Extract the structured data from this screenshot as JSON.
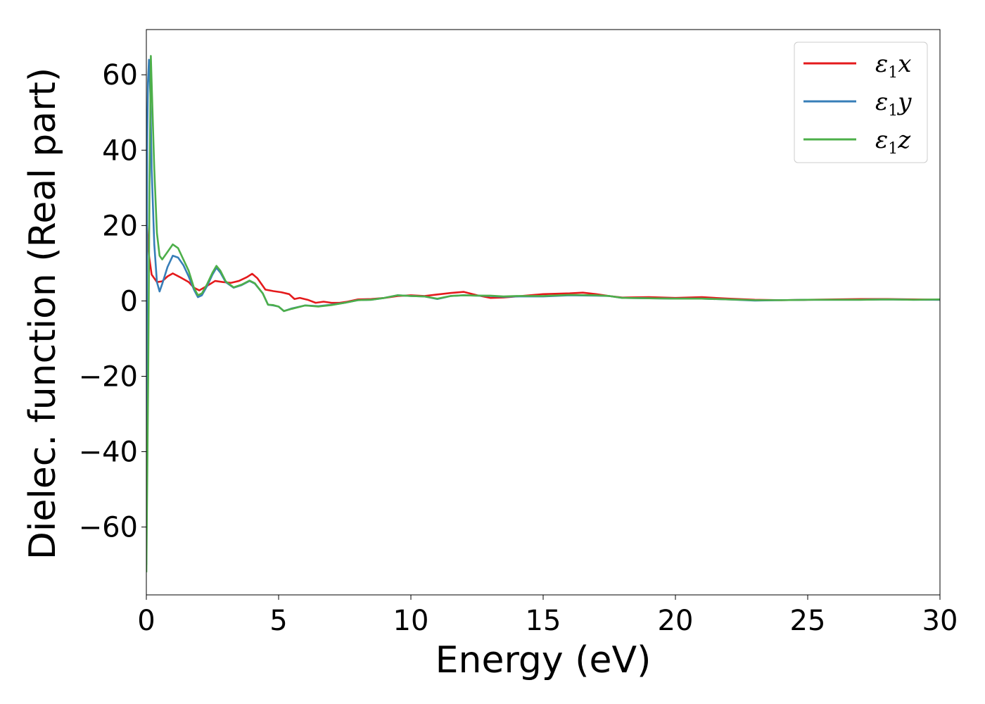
{
  "chart_data": {
    "type": "line",
    "title": "",
    "xlabel": "Energy (eV)",
    "ylabel": "Dielec. function (Real part)",
    "xlim": [
      0,
      30
    ],
    "ylim": [
      -78,
      72
    ],
    "xticks": [
      0,
      5,
      10,
      15,
      20,
      25,
      30
    ],
    "yticks": [
      -60,
      -40,
      -20,
      0,
      20,
      40,
      60
    ],
    "xtick_labels": [
      "0",
      "5",
      "10",
      "15",
      "20",
      "25",
      "30"
    ],
    "ytick_labels": [
      "−60",
      "−40",
      "−20",
      "0",
      "20",
      "40",
      "60"
    ],
    "grid": false,
    "legend_position": "top-right",
    "series": [
      {
        "name": "ε₁x",
        "name_base": "ε",
        "name_sub": "1",
        "name_tail": "x",
        "color": "#e41a1c",
        "points": [
          [
            0.0,
            22
          ],
          [
            0.1,
            12
          ],
          [
            0.2,
            7
          ],
          [
            0.4,
            5
          ],
          [
            0.6,
            5.2
          ],
          [
            0.8,
            6.5
          ],
          [
            1.0,
            7.3
          ],
          [
            1.3,
            6.2
          ],
          [
            1.6,
            5.0
          ],
          [
            1.8,
            3.5
          ],
          [
            2.0,
            2.8
          ],
          [
            2.3,
            4.0
          ],
          [
            2.6,
            5.3
          ],
          [
            2.9,
            5.0
          ],
          [
            3.2,
            4.8
          ],
          [
            3.5,
            5.3
          ],
          [
            3.8,
            6.3
          ],
          [
            4.0,
            7.2
          ],
          [
            4.2,
            6.0
          ],
          [
            4.5,
            3.0
          ],
          [
            4.8,
            2.6
          ],
          [
            5.1,
            2.3
          ],
          [
            5.4,
            1.8
          ],
          [
            5.6,
            0.5
          ],
          [
            5.8,
            0.8
          ],
          [
            6.1,
            0.3
          ],
          [
            6.4,
            -0.5
          ],
          [
            6.7,
            -0.2
          ],
          [
            7.0,
            -0.5
          ],
          [
            7.3,
            -0.5
          ],
          [
            7.6,
            -0.2
          ],
          [
            8.0,
            0.4
          ],
          [
            8.5,
            0.5
          ],
          [
            9.0,
            0.8
          ],
          [
            9.5,
            1.3
          ],
          [
            10.0,
            1.5
          ],
          [
            10.5,
            1.3
          ],
          [
            11.0,
            1.7
          ],
          [
            11.5,
            2.1
          ],
          [
            12.0,
            2.4
          ],
          [
            12.5,
            1.5
          ],
          [
            13.0,
            0.8
          ],
          [
            13.5,
            0.9
          ],
          [
            14.0,
            1.2
          ],
          [
            15.0,
            1.8
          ],
          [
            16.0,
            2.0
          ],
          [
            16.5,
            2.2
          ],
          [
            17.0,
            1.8
          ],
          [
            17.5,
            1.3
          ],
          [
            18.0,
            0.9
          ],
          [
            19.0,
            1.0
          ],
          [
            20.0,
            0.8
          ],
          [
            21.0,
            1.0
          ],
          [
            22.0,
            0.6
          ],
          [
            23.0,
            0.3
          ],
          [
            24.0,
            0.2
          ],
          [
            25.0,
            0.3
          ],
          [
            26.0,
            0.4
          ],
          [
            27.0,
            0.5
          ],
          [
            28.0,
            0.5
          ],
          [
            29.0,
            0.4
          ],
          [
            30.0,
            0.3
          ]
        ]
      },
      {
        "name": "ε₁y",
        "name_base": "ε",
        "name_sub": "1",
        "name_tail": "y",
        "color": "#377eb8",
        "points": [
          [
            0.0,
            -70
          ],
          [
            0.03,
            40
          ],
          [
            0.06,
            58
          ],
          [
            0.1,
            64
          ],
          [
            0.15,
            55
          ],
          [
            0.2,
            35
          ],
          [
            0.3,
            15
          ],
          [
            0.4,
            5
          ],
          [
            0.5,
            2.5
          ],
          [
            0.6,
            4.5
          ],
          [
            0.8,
            9
          ],
          [
            1.0,
            12
          ],
          [
            1.2,
            11.5
          ],
          [
            1.4,
            9.5
          ],
          [
            1.6,
            6.5
          ],
          [
            1.8,
            3
          ],
          [
            1.95,
            1
          ],
          [
            2.1,
            1.5
          ],
          [
            2.3,
            4
          ],
          [
            2.5,
            7
          ],
          [
            2.65,
            8.8
          ],
          [
            2.8,
            7.5
          ],
          [
            3.0,
            5.0
          ],
          [
            3.3,
            3.5
          ],
          [
            3.6,
            4.2
          ],
          [
            3.9,
            5.3
          ],
          [
            4.1,
            4.6
          ],
          [
            4.4,
            2.0
          ],
          [
            4.6,
            -1.0
          ],
          [
            4.8,
            -1.2
          ],
          [
            5.0,
            -1.5
          ],
          [
            5.2,
            -2.7
          ],
          [
            5.5,
            -2.0
          ],
          [
            6.0,
            -1.2
          ],
          [
            6.5,
            -1.4
          ],
          [
            7.0,
            -1.0
          ],
          [
            7.5,
            -0.5
          ],
          [
            8.0,
            0.2
          ],
          [
            8.5,
            0.3
          ],
          [
            9.0,
            0.8
          ],
          [
            9.5,
            1.5
          ],
          [
            10.0,
            1.3
          ],
          [
            10.5,
            1.2
          ],
          [
            11.0,
            0.5
          ],
          [
            11.5,
            1.3
          ],
          [
            12.0,
            1.5
          ],
          [
            12.5,
            1.4
          ],
          [
            13.0,
            1.3
          ],
          [
            13.5,
            1.1
          ],
          [
            14.0,
            1.2
          ],
          [
            15.0,
            1.2
          ],
          [
            16.0,
            1.5
          ],
          [
            17.0,
            1.4
          ],
          [
            17.5,
            1.3
          ],
          [
            18.0,
            0.8
          ],
          [
            19.0,
            0.7
          ],
          [
            20.0,
            0.6
          ],
          [
            21.0,
            0.6
          ],
          [
            22.0,
            0.4
          ],
          [
            23.0,
            0.1
          ],
          [
            24.0,
            0.2
          ],
          [
            25.0,
            0.3
          ],
          [
            26.0,
            0.3
          ],
          [
            27.0,
            0.3
          ],
          [
            28.0,
            0.4
          ],
          [
            29.0,
            0.3
          ],
          [
            30.0,
            0.3
          ]
        ]
      },
      {
        "name": "ε₁z",
        "name_base": "ε",
        "name_sub": "1",
        "name_tail": "z",
        "color": "#4daf4a",
        "points": [
          [
            0.0,
            -72
          ],
          [
            0.07,
            -20
          ],
          [
            0.12,
            30
          ],
          [
            0.17,
            65
          ],
          [
            0.2,
            58
          ],
          [
            0.3,
            35
          ],
          [
            0.4,
            18
          ],
          [
            0.5,
            12
          ],
          [
            0.6,
            11
          ],
          [
            0.8,
            13
          ],
          [
            1.0,
            15
          ],
          [
            1.2,
            14
          ],
          [
            1.4,
            11
          ],
          [
            1.6,
            8
          ],
          [
            1.8,
            3.5
          ],
          [
            1.95,
            1.5
          ],
          [
            2.1,
            2.0
          ],
          [
            2.3,
            4.5
          ],
          [
            2.5,
            7.5
          ],
          [
            2.65,
            9.3
          ],
          [
            2.8,
            8.0
          ],
          [
            3.0,
            5.2
          ],
          [
            3.3,
            3.6
          ],
          [
            3.6,
            4.3
          ],
          [
            3.9,
            5.4
          ],
          [
            4.1,
            4.7
          ],
          [
            4.4,
            2.0
          ],
          [
            4.6,
            -1.0
          ],
          [
            4.8,
            -1.1
          ],
          [
            5.0,
            -1.5
          ],
          [
            5.2,
            -2.7
          ],
          [
            5.5,
            -2.1
          ],
          [
            6.0,
            -1.2
          ],
          [
            6.5,
            -1.5
          ],
          [
            7.0,
            -1.1
          ],
          [
            7.5,
            -0.5
          ],
          [
            8.0,
            0.2
          ],
          [
            8.5,
            0.3
          ],
          [
            9.0,
            0.8
          ],
          [
            9.5,
            1.5
          ],
          [
            10.0,
            1.3
          ],
          [
            10.5,
            1.2
          ],
          [
            11.0,
            0.6
          ],
          [
            11.5,
            1.3
          ],
          [
            12.0,
            1.5
          ],
          [
            12.5,
            1.4
          ],
          [
            13.0,
            1.4
          ],
          [
            13.5,
            1.2
          ],
          [
            14.0,
            1.3
          ],
          [
            15.0,
            1.3
          ],
          [
            16.0,
            1.6
          ],
          [
            17.0,
            1.5
          ],
          [
            17.5,
            1.3
          ],
          [
            18.0,
            0.8
          ],
          [
            19.0,
            0.7
          ],
          [
            20.0,
            0.6
          ],
          [
            21.0,
            0.6
          ],
          [
            22.0,
            0.4
          ],
          [
            23.0,
            0.2
          ],
          [
            24.0,
            0.2
          ],
          [
            25.0,
            0.3
          ],
          [
            26.0,
            0.3
          ],
          [
            27.0,
            0.3
          ],
          [
            28.0,
            0.4
          ],
          [
            29.0,
            0.3
          ],
          [
            30.0,
            0.4
          ]
        ]
      }
    ]
  }
}
